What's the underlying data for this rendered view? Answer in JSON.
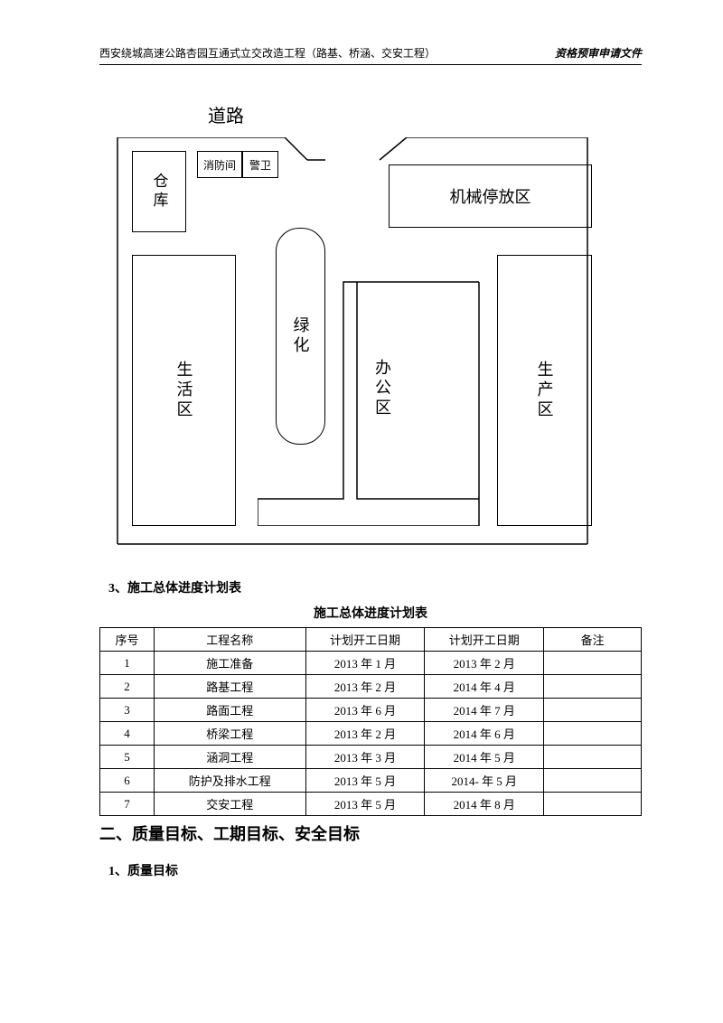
{
  "header": {
    "left": "西安绕城高速公路杏园互通式立交改造工程（路基、桥涵、交安工程）",
    "right": "资格预审申请文件"
  },
  "diagram": {
    "road": "道路",
    "warehouse": "仓库",
    "fireRoom": "消防间",
    "guard": "警卫",
    "machineArea": "机械停放区",
    "green": "绿化",
    "living": "生活区",
    "office": "办公区",
    "production": "生产区",
    "colors": {
      "line": "#000000",
      "bg": "#ffffff"
    }
  },
  "scheduleSection": {
    "sectionLabel": "3、施工总体进度计划表",
    "tableTitle": "施工总体进度计划表",
    "columns": [
      "序号",
      "工程名称",
      "计划开工日期",
      "计划开工日期",
      "备注"
    ],
    "rows": [
      [
        "1",
        "施工准备",
        "2013 年 1 月",
        "2013 年 2 月",
        ""
      ],
      [
        "2",
        "路基工程",
        "2013 年 2 月",
        "2014 年 4 月",
        ""
      ],
      [
        "3",
        "路面工程",
        "2013 年 6 月",
        "2014 年 7 月",
        ""
      ],
      [
        "4",
        "桥梁工程",
        "2013 年 2 月",
        "2014 年 6 月",
        ""
      ],
      [
        "5",
        "涵洞工程",
        "2013 年 3 月",
        "2014 年 5 月",
        ""
      ],
      [
        "6",
        "防护及排水工程",
        "2013 年 5 月",
        "2014- 年 5 月",
        ""
      ],
      [
        "7",
        "交安工程",
        "2013 年 5 月",
        "2014 年 8 月",
        ""
      ]
    ]
  },
  "heading2": "二、质量目标、工期目标、安全目标",
  "sub1": "1、质量目标"
}
